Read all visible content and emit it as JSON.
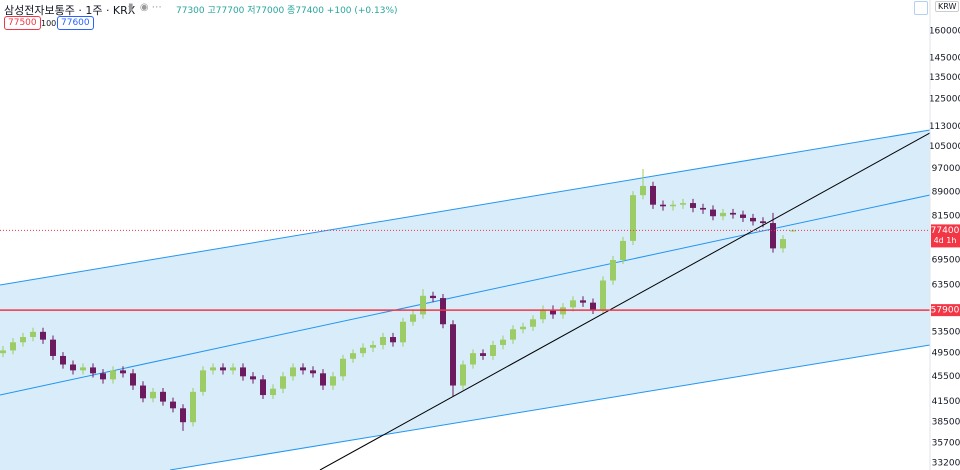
{
  "header": {
    "symbol": "삼성전자보통주 · 1주 · KRX",
    "ohlc": "77300 고77700 저77000 종77400 +100 (+0.13%)",
    "bid": "77500",
    "spread": "100",
    "ask": "77600",
    "currency": "KRW"
  },
  "chart_data": {
    "type": "candlestick",
    "log_scale": true,
    "ylim": [
      32350,
      179100
    ],
    "yticks": [
      160000,
      145000,
      135000,
      125000,
      113000,
      105000,
      97000,
      89000,
      81500,
      69500,
      63500,
      53500,
      49500,
      45500,
      41500,
      38500,
      35700,
      33200
    ],
    "up_color": "#9ccc65",
    "down_color": "#6d1b5f",
    "candles": {
      "open": [
        49500,
        50000,
        51500,
        52500,
        53500,
        52000,
        49000,
        47500,
        46500,
        47000,
        46000,
        45000,
        46500,
        46000,
        44000,
        42000,
        43000,
        41500,
        40500,
        38500,
        43000,
        46500,
        47000,
        46500,
        47000,
        45500,
        45000,
        42500,
        43500,
        45500,
        47000,
        46500,
        46000,
        44000,
        45500,
        48500,
        49500,
        50500,
        51000,
        52500,
        51500,
        55500,
        57000,
        61000,
        60500,
        55000,
        44000,
        47500,
        49500,
        49000,
        51000,
        52000,
        54000,
        54500,
        56000,
        58000,
        57000,
        58500,
        60000,
        59500,
        58000,
        64500,
        69500,
        74500,
        88000,
        91000,
        85000,
        84500,
        85000,
        85500,
        84000,
        83500,
        81500,
        82500,
        82000,
        81000,
        80000,
        79500,
        72500,
        77300
      ],
      "high": [
        50800,
        52300,
        53300,
        54300,
        54300,
        52800,
        49700,
        48200,
        47700,
        47700,
        46700,
        47200,
        47200,
        46700,
        44700,
        43600,
        43600,
        42100,
        41100,
        43600,
        47200,
        47700,
        47700,
        47700,
        47700,
        46200,
        45700,
        44200,
        46200,
        47700,
        47700,
        47200,
        46700,
        46200,
        49200,
        50200,
        51300,
        51800,
        53300,
        53300,
        56300,
        57900,
        62500,
        61900,
        61400,
        55800,
        48200,
        50200,
        50200,
        51800,
        52800,
        54800,
        55300,
        56800,
        58900,
        58900,
        59400,
        60900,
        60900,
        60400,
        65500,
        70500,
        75600,
        89300,
        96800,
        92400,
        86300,
        86300,
        86800,
        86800,
        85300,
        84800,
        83700,
        83700,
        83200,
        82200,
        81200,
        82500,
        76100,
        77700
      ],
      "low": [
        48800,
        49300,
        50700,
        51700,
        51200,
        48300,
        46800,
        45800,
        45800,
        45300,
        44300,
        44300,
        45300,
        43300,
        41400,
        41400,
        40900,
        39900,
        37300,
        37900,
        42400,
        45800,
        45800,
        45800,
        44800,
        44300,
        41900,
        41900,
        42800,
        44800,
        45800,
        45300,
        43300,
        43300,
        44800,
        47800,
        48800,
        49700,
        50200,
        50700,
        50700,
        54700,
        56100,
        59600,
        54200,
        42300,
        43300,
        46800,
        48300,
        48300,
        50200,
        51200,
        53200,
        53700,
        55200,
        56100,
        56100,
        57600,
        58600,
        57100,
        57100,
        63500,
        68500,
        73400,
        86700,
        83700,
        83200,
        83200,
        83700,
        82700,
        82200,
        80300,
        80300,
        80800,
        79800,
        78800,
        78300,
        71400,
        71400,
        77000
      ],
      "close": [
        50000,
        51500,
        52500,
        53500,
        52000,
        49000,
        47500,
        46500,
        47000,
        46000,
        45000,
        46500,
        46000,
        44000,
        42000,
        43000,
        41500,
        40500,
        38500,
        43000,
        46500,
        47000,
        46500,
        47000,
        45500,
        45000,
        42500,
        43500,
        45500,
        47000,
        46500,
        46000,
        44000,
        45500,
        48500,
        49500,
        50500,
        51000,
        52500,
        51500,
        55500,
        57000,
        61000,
        60500,
        55000,
        44000,
        47500,
        49500,
        49000,
        51000,
        52000,
        54000,
        54500,
        56000,
        58000,
        57000,
        58500,
        60000,
        59500,
        58000,
        64500,
        69500,
        74500,
        88000,
        91000,
        85000,
        84500,
        85000,
        85500,
        84000,
        83500,
        81500,
        82500,
        82000,
        81000,
        80000,
        79500,
        72500,
        75000,
        77400
      ]
    },
    "last_price": {
      "value": 77400,
      "countdown": "4d 1h",
      "color": "#f23645"
    },
    "hline": {
      "value": 57900,
      "color": "#f23645"
    },
    "channel": {
      "color": "#2196f3",
      "fill": "#cfe7f9",
      "upper": {
        "x": [
          -0.3,
          92.7
        ],
        "values": [
          63460,
          111570
        ]
      },
      "middle": {
        "x": [
          -0.3,
          92.7
        ],
        "values": [
          42510,
          88050
        ]
      },
      "lower": {
        "x": [
          16.7,
          92.7
        ],
        "values": [
          32350,
          50990
        ]
      }
    },
    "trend_line": {
      "color": "#000000",
      "x": [
        31.7,
        92.7
      ],
      "values": [
        32350,
        110370
      ]
    }
  }
}
